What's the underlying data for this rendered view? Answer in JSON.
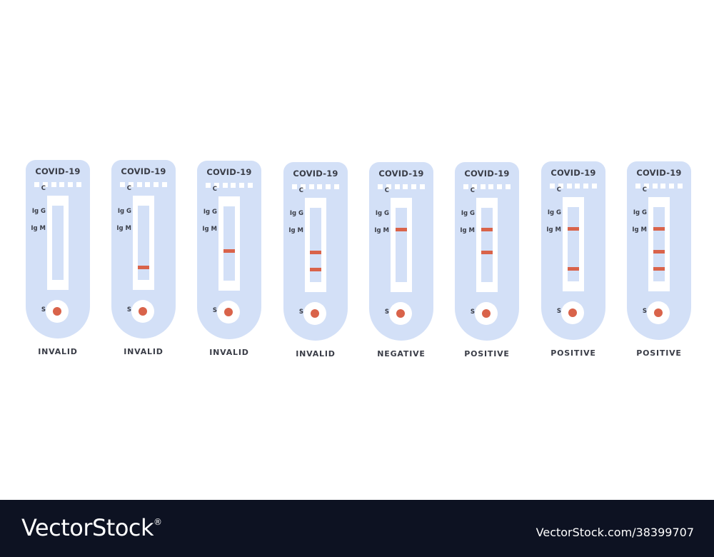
{
  "tests": [
    {
      "brand": "COVID-19",
      "result": "INVALID",
      "labels": {
        "c": "C",
        "igg": "Ig G",
        "igm": "Ig M",
        "s": "S"
      },
      "bands": {
        "c": false,
        "igg": false,
        "igm": false
      }
    },
    {
      "brand": "COVID-19",
      "result": "INVALID",
      "labels": {
        "c": "C",
        "igg": "Ig G",
        "igm": "Ig M",
        "s": "S"
      },
      "bands": {
        "c": false,
        "igg": false,
        "igm": true
      }
    },
    {
      "brand": "COVID-19",
      "result": "INVALID",
      "labels": {
        "c": "C",
        "igg": "Ig G",
        "igm": "Ig M",
        "s": "S"
      },
      "bands": {
        "c": false,
        "igg": true,
        "igm": false
      }
    },
    {
      "brand": "COVID-19",
      "result": "INVALID",
      "labels": {
        "c": "C",
        "igg": "Ig G",
        "igm": "Ig M",
        "s": "S"
      },
      "bands": {
        "c": false,
        "igg": true,
        "igm": true
      }
    },
    {
      "brand": "COVID-19",
      "result": "NEGATIVE",
      "labels": {
        "c": "C",
        "igg": "Ig G",
        "igm": "Ig M",
        "s": "S"
      },
      "bands": {
        "c": true,
        "igg": false,
        "igm": false
      }
    },
    {
      "brand": "COVID-19",
      "result": "POSITIVE",
      "labels": {
        "c": "C",
        "igg": "Ig G",
        "igm": "Ig M",
        "s": "S"
      },
      "bands": {
        "c": true,
        "igg": true,
        "igm": false
      }
    },
    {
      "brand": "COVID-19",
      "result": "POSITIVE",
      "labels": {
        "c": "C",
        "igg": "Ig G",
        "igm": "Ig M",
        "s": "S"
      },
      "bands": {
        "c": true,
        "igg": false,
        "igm": true
      }
    },
    {
      "brand": "COVID-19",
      "result": "POSITIVE",
      "labels": {
        "c": "C",
        "igg": "Ig G",
        "igm": "Ig M",
        "s": "S"
      },
      "bands": {
        "c": true,
        "igg": true,
        "igm": true
      }
    }
  ],
  "colors": {
    "cassette": "#d3e0f7",
    "band": "#d9634a",
    "text": "#3a3d47",
    "footer": "#0d1222"
  },
  "footer": {
    "logo": "VectorStock",
    "registered": "®",
    "code": "VectorStock.com/38399707"
  }
}
